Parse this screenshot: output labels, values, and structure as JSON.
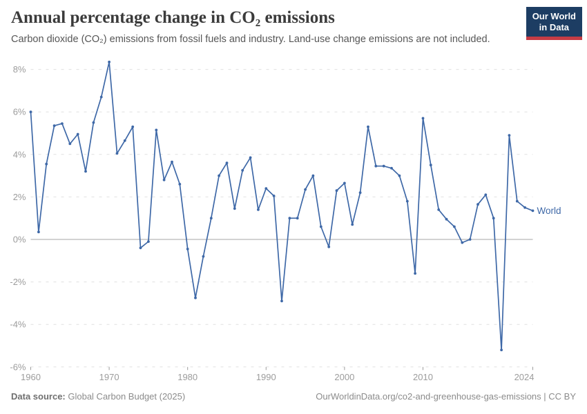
{
  "header": {
    "title": "Annual percentage change in CO₂ emissions",
    "subtitle": "Carbon dioxide (CO₂) emissions from fossil fuels and industry. Land-use change emissions are not included."
  },
  "logo": {
    "line1": "Our World",
    "line2": "in Data",
    "bg_color": "#1d3d63",
    "accent_color": "#c63c45"
  },
  "chart_data": {
    "type": "line",
    "title": "Annual percentage change in CO₂ emissions",
    "xlabel": "",
    "ylabel": "",
    "x_range": [
      1960,
      2024
    ],
    "y_range": [
      -6,
      8
    ],
    "x_ticks": [
      1960,
      1970,
      1980,
      1990,
      2000,
      2010,
      2024
    ],
    "y_ticks": [
      8,
      6,
      4,
      2,
      0,
      -2,
      -4,
      -6
    ],
    "y_tick_suffix": "%",
    "grid": "horizontal-dashed",
    "zero_line": true,
    "legend_position": "line-end-label",
    "colors": {
      "line": "#3e68a7",
      "gridline": "#e0e0e0",
      "zero_line": "#a5a5a5",
      "tick_text": "#9c9c9c"
    },
    "series": [
      {
        "name": "World",
        "color": "#3e68a7",
        "points": [
          [
            1960,
            6.0
          ],
          [
            1961,
            0.35
          ],
          [
            1962,
            3.55
          ],
          [
            1963,
            5.35
          ],
          [
            1964,
            5.45
          ],
          [
            1965,
            4.5
          ],
          [
            1966,
            4.95
          ],
          [
            1967,
            3.2
          ],
          [
            1968,
            5.5
          ],
          [
            1969,
            6.7
          ],
          [
            1970,
            8.35
          ],
          [
            1971,
            4.05
          ],
          [
            1972,
            4.65
          ],
          [
            1973,
            5.3
          ],
          [
            1974,
            -0.4
          ],
          [
            1975,
            -0.1
          ],
          [
            1976,
            5.15
          ],
          [
            1977,
            2.8
          ],
          [
            1978,
            3.65
          ],
          [
            1979,
            2.6
          ],
          [
            1980,
            -0.45
          ],
          [
            1981,
            -2.75
          ],
          [
            1982,
            -0.8
          ],
          [
            1983,
            1.0
          ],
          [
            1984,
            3.0
          ],
          [
            1985,
            3.6
          ],
          [
            1986,
            1.45
          ],
          [
            1987,
            3.25
          ],
          [
            1988,
            3.85
          ],
          [
            1989,
            1.4
          ],
          [
            1990,
            2.4
          ],
          [
            1991,
            2.05
          ],
          [
            1992,
            -2.9
          ],
          [
            1993,
            1.0
          ],
          [
            1994,
            1.0
          ],
          [
            1995,
            2.35
          ],
          [
            1996,
            3.0
          ],
          [
            1997,
            0.6
          ],
          [
            1998,
            -0.35
          ],
          [
            1999,
            2.3
          ],
          [
            2000,
            2.65
          ],
          [
            2001,
            0.7
          ],
          [
            2002,
            2.2
          ],
          [
            2003,
            5.3
          ],
          [
            2004,
            3.45
          ],
          [
            2005,
            3.45
          ],
          [
            2006,
            3.35
          ],
          [
            2007,
            3.0
          ],
          [
            2008,
            1.8
          ],
          [
            2009,
            -1.6
          ],
          [
            2010,
            5.7
          ],
          [
            2011,
            3.5
          ],
          [
            2012,
            1.4
          ],
          [
            2013,
            0.95
          ],
          [
            2014,
            0.6
          ],
          [
            2015,
            -0.15
          ],
          [
            2016,
            0.0
          ],
          [
            2017,
            1.65
          ],
          [
            2018,
            2.1
          ],
          [
            2019,
            1.0
          ],
          [
            2020,
            -5.2
          ],
          [
            2021,
            4.9
          ],
          [
            2022,
            1.8
          ],
          [
            2023,
            1.5
          ],
          [
            2024,
            1.35
          ]
        ]
      }
    ]
  },
  "footer": {
    "datasource_label": "Data source:",
    "datasource_value": " Global Carbon Budget (2025)",
    "license": "OurWorldinData.org/co2-and-greenhouse-gas-emissions | CC BY"
  }
}
